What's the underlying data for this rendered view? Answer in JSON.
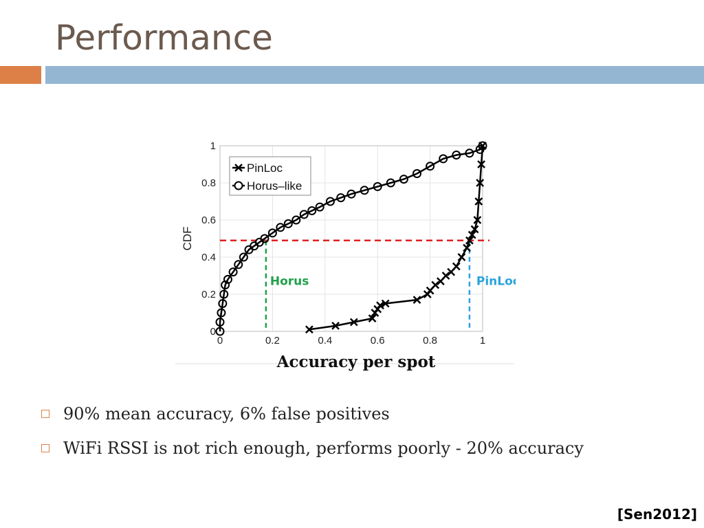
{
  "slide": {
    "title": "Performance",
    "accent_colors": {
      "orange": "#dd8047",
      "blue": "#94b6d2",
      "title": "#6b5a4e"
    }
  },
  "chart_data": {
    "type": "line",
    "title": "",
    "xlabel": "Accuracy per spot",
    "ylabel": "CDF",
    "xlim": [
      0,
      1
    ],
    "ylim": [
      0,
      1
    ],
    "xticks": [
      "0",
      "0.2",
      "0.4",
      "0.6",
      "0.8",
      "1"
    ],
    "yticks": [
      "0",
      "0.2",
      "0.4",
      "0.6",
      "0.8",
      "1"
    ],
    "grid": true,
    "legend": "top-left",
    "series": [
      {
        "name": "PinLoc",
        "marker": "x",
        "color": "#000000",
        "x": [
          0.34,
          0.44,
          0.51,
          0.58,
          0.59,
          0.6,
          0.61,
          0.63,
          0.75,
          0.79,
          0.8,
          0.82,
          0.84,
          0.86,
          0.88,
          0.9,
          0.92,
          0.94,
          0.95,
          0.96,
          0.97,
          0.98,
          0.985,
          0.99,
          0.995,
          1.0
        ],
        "y": [
          0.01,
          0.03,
          0.05,
          0.07,
          0.1,
          0.12,
          0.14,
          0.15,
          0.17,
          0.2,
          0.22,
          0.25,
          0.27,
          0.3,
          0.32,
          0.35,
          0.4,
          0.45,
          0.49,
          0.52,
          0.55,
          0.6,
          0.7,
          0.8,
          0.9,
          1.0
        ]
      },
      {
        "name": "Horus–like",
        "marker": "o",
        "color": "#000000",
        "x": [
          0.0,
          0.0,
          0.005,
          0.01,
          0.015,
          0.02,
          0.03,
          0.05,
          0.07,
          0.09,
          0.11,
          0.13,
          0.15,
          0.17,
          0.2,
          0.23,
          0.26,
          0.29,
          0.32,
          0.35,
          0.38,
          0.42,
          0.46,
          0.5,
          0.55,
          0.6,
          0.65,
          0.7,
          0.75,
          0.8,
          0.85,
          0.9,
          0.95,
          0.99,
          1.0
        ],
        "y": [
          0.0,
          0.05,
          0.1,
          0.15,
          0.2,
          0.25,
          0.28,
          0.32,
          0.36,
          0.4,
          0.44,
          0.46,
          0.48,
          0.5,
          0.53,
          0.56,
          0.58,
          0.6,
          0.63,
          0.65,
          0.67,
          0.7,
          0.72,
          0.74,
          0.76,
          0.78,
          0.8,
          0.82,
          0.85,
          0.89,
          0.93,
          0.95,
          0.96,
          0.98,
          1.0
        ]
      }
    ],
    "annotations": {
      "threshold_y": 0.49,
      "horus": {
        "label": "Horus",
        "x": 0.175,
        "color": "#1fa04a"
      },
      "pinloc": {
        "label": "PinLoc",
        "x": 0.95,
        "color": "#29a3dc"
      },
      "threshold_color": "#e02020"
    }
  },
  "bullets": [
    "90% mean accuracy, 6% false positives",
    "WiFi RSSI is not rich enough, performs poorly - 20% accuracy"
  ],
  "citation": "[Sen2012]"
}
